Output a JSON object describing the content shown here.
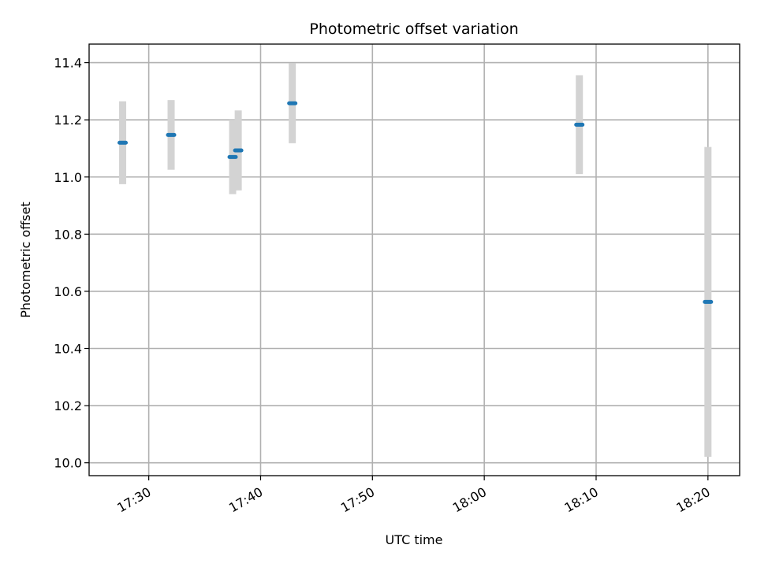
{
  "chart_data": {
    "type": "scatter",
    "title": "Photometric offset variation",
    "xlabel": "UTC time",
    "ylabel": "Photometric offset",
    "x_ticks": [
      "17:30",
      "17:40",
      "17:50",
      "18:00",
      "18:10",
      "18:20"
    ],
    "y_ticks": [
      "10.0",
      "10.2",
      "10.4",
      "10.6",
      "10.8",
      "11.0",
      "11.2",
      "11.4"
    ],
    "xlim": [
      "17:24:40",
      "18:22:50"
    ],
    "ylim": [
      9.955,
      11.465
    ],
    "grid": true,
    "points": [
      {
        "x": "17:27:40",
        "y": 11.12,
        "err": 0.145
      },
      {
        "x": "17:32:00",
        "y": 11.147,
        "err": 0.122
      },
      {
        "x": "17:37:30",
        "y": 11.07,
        "err": 0.13
      },
      {
        "x": "17:38:00",
        "y": 11.093,
        "err": 0.14
      },
      {
        "x": "17:42:50",
        "y": 11.258,
        "err": 0.14
      },
      {
        "x": "18:08:30",
        "y": 11.183,
        "err": 0.173
      },
      {
        "x": "18:20:00",
        "y": 10.563,
        "err": 0.542
      }
    ],
    "colors": {
      "points": "#1f77b4",
      "error_bars": "#d3d3d3",
      "grid": "#b0b0b0"
    }
  }
}
